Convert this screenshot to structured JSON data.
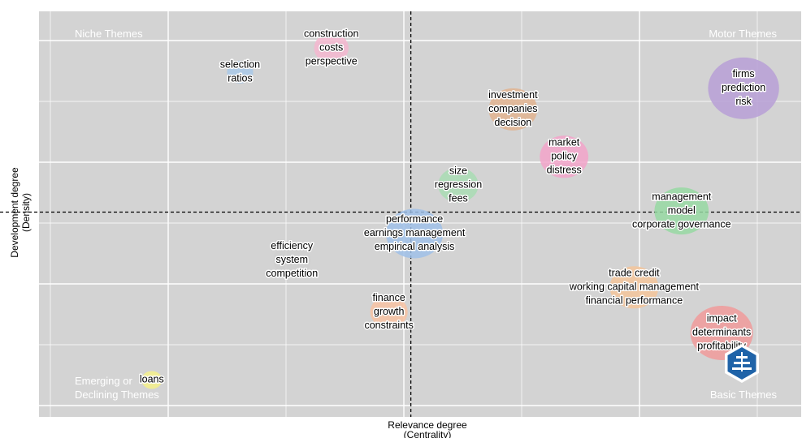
{
  "chart_data": {
    "type": "scatter",
    "xlabel": "Relevance degree",
    "xlabel_sub": "(Centrality)",
    "ylabel": "Development degree",
    "ylabel_sub": "(Density)",
    "xlim": [
      0,
      10
    ],
    "ylim": [
      0,
      10
    ],
    "x_divider": 4.94,
    "y_divider": 5.14,
    "grid": true,
    "quadrants": {
      "top_left": "Niche Themes",
      "top_right": "Motor Themes",
      "bottom_left": [
        "Emerging or",
        "Declining Themes"
      ],
      "bottom_right": "Basic Themes"
    },
    "clusters": [
      {
        "words": [
          "construction",
          "costs",
          "perspective"
        ],
        "x": 3.85,
        "y": 9.5,
        "size": 0.35,
        "color": "#f4b6cf"
      },
      {
        "words": [
          "selection",
          "ratios"
        ],
        "x": 2.6,
        "y": 8.86,
        "size": 0.2,
        "color": "#a8c8e8"
      },
      {
        "words": [
          "firms",
          "prediction",
          "risk"
        ],
        "x": 9.5,
        "y": 8.43,
        "size": 1.0,
        "color": "#b79fd6"
      },
      {
        "words": [
          "investment",
          "companies",
          "decision"
        ],
        "x": 6.34,
        "y": 7.87,
        "size": 0.6,
        "color": "#e0b38f"
      },
      {
        "words": [
          "market",
          "policy",
          "distress"
        ],
        "x": 7.04,
        "y": 6.61,
        "size": 0.6,
        "color": "#f2a3c9"
      },
      {
        "words": [
          "size",
          "regression",
          "fees"
        ],
        "x": 5.59,
        "y": 5.86,
        "size": 0.45,
        "color": "#a8dcb3"
      },
      {
        "words": [
          "management",
          "model",
          "corporate governance"
        ],
        "x": 8.65,
        "y": 5.17,
        "size": 0.7,
        "color": "#96d8a2"
      },
      {
        "words": [
          "performance",
          "earnings management",
          "empirical analysis"
        ],
        "x": 4.99,
        "y": 4.57,
        "size": 0.75,
        "color": "#9fbfe8"
      },
      {
        "words": [
          "efficiency",
          "system",
          "competition"
        ],
        "x": 3.31,
        "y": 3.86,
        "size": 0.4,
        "color": "#cfcfcf"
      },
      {
        "words": [
          "trade credit",
          "working capital management",
          "financial performance"
        ],
        "x": 8.0,
        "y": 3.14,
        "size": 0.6,
        "color": "#f3c49a"
      },
      {
        "words": [
          "finance",
          "growth",
          "constraints"
        ],
        "x": 4.64,
        "y": 2.49,
        "size": 0.4,
        "color": "#f7c2a2"
      },
      {
        "words": [
          "impact",
          "determinants",
          "profitability"
        ],
        "x": 9.2,
        "y": 1.93,
        "size": 0.85,
        "color": "#f09a9a"
      },
      {
        "words": [
          "loans"
        ],
        "x": 1.39,
        "y": 0.68,
        "size": 0.1,
        "color": "#f4f08a"
      }
    ]
  }
}
